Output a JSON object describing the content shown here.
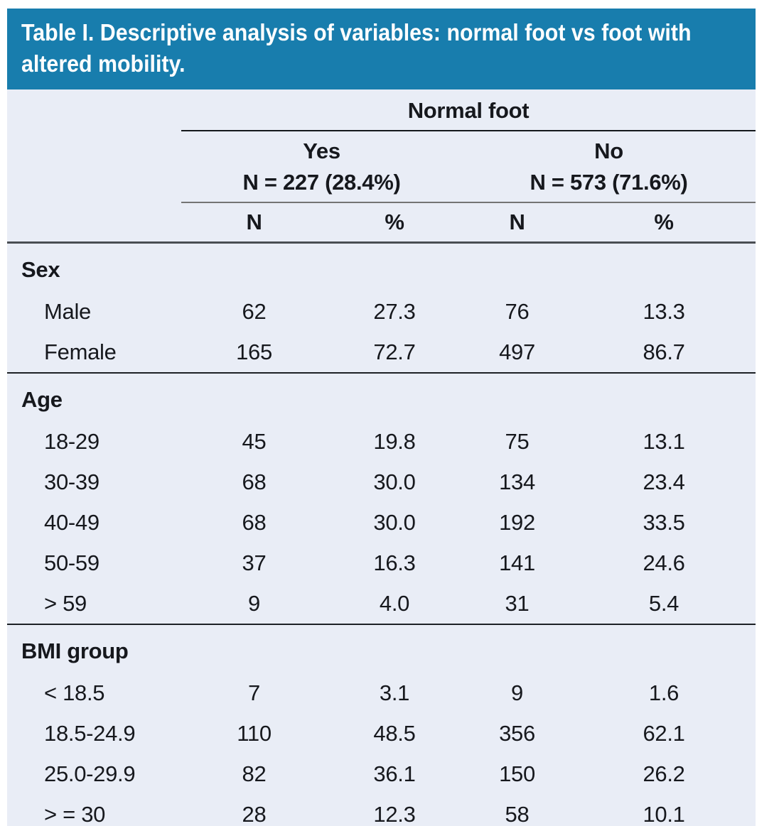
{
  "title": "Table I. Descriptive analysis of variables: normal foot vs foot with altered mobility.",
  "colors": {
    "title_bar_bg": "#187dad",
    "title_text": "#ffffff",
    "table_bg": "#e9edf6",
    "text": "#16181d"
  },
  "table": {
    "group_header": "Normal foot",
    "col_groups": [
      {
        "label": "Yes",
        "sub": "N = 227 (28.4%)"
      },
      {
        "label": "No",
        "sub": "N = 573 (71.6%)"
      }
    ],
    "col_headers": [
      "N",
      "%",
      "N",
      "%"
    ],
    "sections": [
      {
        "name": "Sex",
        "rows": [
          {
            "label": "Male",
            "values": [
              "62",
              "27.3",
              "76",
              "13.3"
            ]
          },
          {
            "label": "Female",
            "values": [
              "165",
              "72.7",
              "497",
              "86.7"
            ]
          }
        ]
      },
      {
        "name": "Age",
        "rows": [
          {
            "label": "18-29",
            "values": [
              "45",
              "19.8",
              "75",
              "13.1"
            ]
          },
          {
            "label": "30-39",
            "values": [
              "68",
              "30.0",
              "134",
              "23.4"
            ]
          },
          {
            "label": "40-49",
            "values": [
              "68",
              "30.0",
              "192",
              "33.5"
            ]
          },
          {
            "label": "50-59",
            "values": [
              "37",
              "16.3",
              "141",
              "24.6"
            ]
          },
          {
            "label": "> 59",
            "values": [
              "9",
              "4.0",
              "31",
              "5.4"
            ]
          }
        ]
      },
      {
        "name": "BMI group",
        "rows": [
          {
            "label": "< 18.5",
            "values": [
              "7",
              "3.1",
              "9",
              "1.6"
            ]
          },
          {
            "label": "18.5-24.9",
            "values": [
              "110",
              "48.5",
              "356",
              "62.1"
            ]
          },
          {
            "label": "25.0-29.9",
            "values": [
              "82",
              "36.1",
              "150",
              "26.2"
            ]
          },
          {
            "label": "> = 30",
            "values": [
              "28",
              "12.3",
              "58",
              "10.1"
            ]
          }
        ]
      }
    ]
  }
}
